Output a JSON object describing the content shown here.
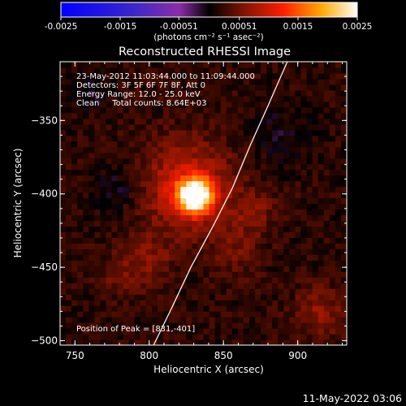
{
  "chart_data": {
    "type": "heatmap",
    "title": "Reconstructed RHESSI Image",
    "xlabel": "Heliocentric X (arcsec)",
    "ylabel": "Heliocentric Y (arcsec)",
    "xlim": [
      740,
      933
    ],
    "ylim": [
      -503,
      -310
    ],
    "x_ticks": [
      750,
      800,
      850,
      900
    ],
    "y_ticks": [
      -350,
      -400,
      -450,
      -500
    ],
    "colorbar": {
      "range": [
        -0.0025,
        0.0025
      ],
      "ticks": [
        "-0.0025",
        "-0.0015",
        "-0.00051",
        "0.00051",
        "0.0015",
        "0.0025"
      ],
      "unit_label": "(photons cm⁻² s⁻¹ asec⁻²)"
    },
    "annotations": [
      "23-May-2012 11:03:44.000 to 11:09:44.000",
      "Detectors: 3F 5F 6F 7F 8F, Att 0",
      "Energy Range: 12.0 - 25.0 keV",
      "Clean     Total counts: 8.64E+03"
    ],
    "peak": {
      "label": "Position of Peak = [831,-401]",
      "x": 831,
      "y": -401
    },
    "limb_curve": [
      [
        803,
        -503
      ],
      [
        815,
        -478
      ],
      [
        828,
        -450
      ],
      [
        843,
        -422
      ],
      [
        856,
        -396
      ],
      [
        868,
        -367
      ],
      [
        880,
        -340
      ],
      [
        893,
        -310
      ]
    ],
    "sources": [
      {
        "x": 831,
        "y": -401,
        "sigma": 8,
        "amp": 0.0025
      },
      {
        "x": 825,
        "y": -395,
        "sigma": 22,
        "amp": 0.0008
      },
      {
        "x": 870,
        "y": -412,
        "sigma": 10,
        "amp": 0.0004
      },
      {
        "x": 858,
        "y": -440,
        "sigma": 12,
        "amp": 0.0003
      },
      {
        "x": 800,
        "y": -445,
        "sigma": 12,
        "amp": 0.00035
      },
      {
        "x": 780,
        "y": -455,
        "sigma": 10,
        "amp": 0.0003
      },
      {
        "x": 915,
        "y": -480,
        "sigma": 12,
        "amp": 0.00045
      },
      {
        "x": 780,
        "y": -395,
        "sigma": 12,
        "amp": -0.0003
      },
      {
        "x": 760,
        "y": -330,
        "sigma": 10,
        "amp": -0.00025
      },
      {
        "x": 890,
        "y": -360,
        "sigma": 14,
        "amp": -0.00025
      }
    ]
  },
  "footer": {
    "date": "11-May-2022 03:06"
  }
}
